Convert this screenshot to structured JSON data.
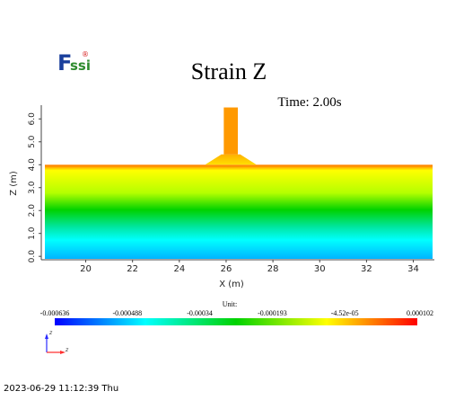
{
  "logo": {
    "text_f": "F",
    "text_ssi": "ssi",
    "mark": "®",
    "color_f": "#1a3f9c",
    "color_ssi": "#2e8b2e",
    "color_mark": "#d62020"
  },
  "chart_data": {
    "type": "heatmap",
    "title": "Strain Z",
    "time_label": "Time: 2.00s",
    "xlabel": "X (m)",
    "ylabel": "Z (m)",
    "x_ticks": [
      20,
      22,
      24,
      26,
      28,
      30,
      32,
      34
    ],
    "x_tick_labels": [
      "20",
      "22",
      "24",
      "26",
      "28",
      "30",
      "32",
      "34"
    ],
    "y_ticks": [
      0.0,
      1.0,
      2.0,
      3.0,
      4.0,
      5.0,
      6.0
    ],
    "y_tick_labels": [
      "0.0",
      "1.0",
      "2.0",
      "3.0",
      "4.0",
      "5.0",
      "6.0"
    ],
    "xlim": [
      18.1,
      34.9
    ],
    "ylim": [
      -0.15,
      6.6
    ],
    "ground_top_z": 4.0,
    "footing": {
      "x_bottom": [
        25.1,
        27.3
      ],
      "x_top": [
        25.8,
        26.6
      ],
      "z": [
        4.0,
        4.45
      ]
    },
    "column": {
      "x": [
        25.9,
        26.5
      ],
      "z": [
        4.45,
        6.5
      ]
    },
    "colorbar": {
      "unit_label": "Unit:",
      "min": -0.000636,
      "max": 0.000102,
      "tick_labels": [
        "-0.000636",
        "-0.000488",
        "-0.00034",
        "-0.000193",
        "-4.52e-05",
        "0.000102"
      ]
    },
    "colors": [
      "#0000ff",
      "#00ffff",
      "#00c800",
      "#ffff00",
      "#ff0000"
    ]
  },
  "axes_triad": {
    "z_label": "z",
    "x_label": "z"
  },
  "timestamp": "2023-06-29 11:12:39 Thu"
}
